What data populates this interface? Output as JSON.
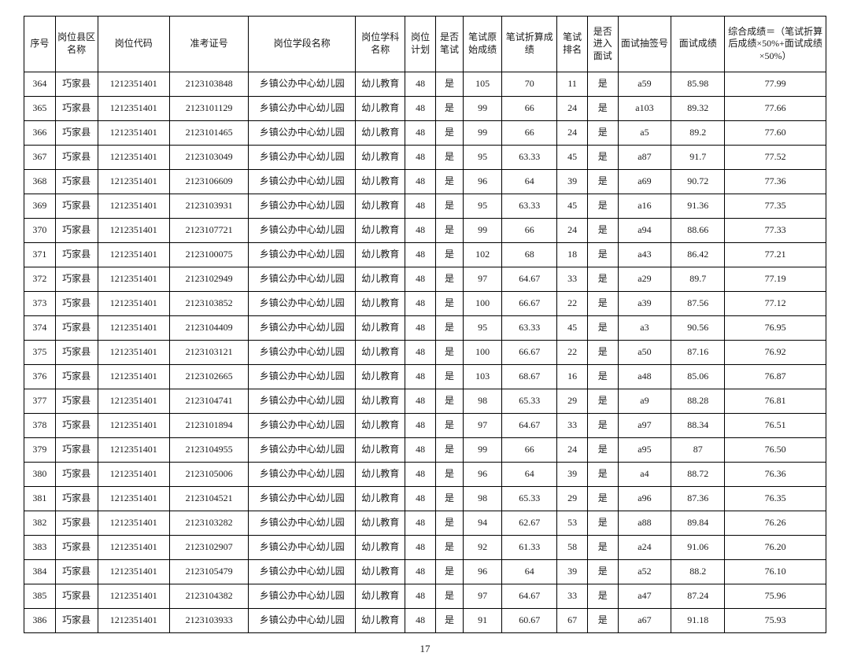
{
  "page_number": "17",
  "colgroup": [
    34,
    46,
    78,
    86,
    116,
    54,
    33,
    30,
    42,
    60,
    33,
    33,
    58,
    58,
    110
  ],
  "headers": [
    "序号",
    "岗位县区名称",
    "岗位代码",
    "准考证号",
    "岗位学段名称",
    "岗位学科名称",
    "岗位计划",
    "是否笔试",
    "笔试原始成绩",
    "笔试折算成绩",
    "笔试排名",
    "是否进入面试",
    "面试抽签号",
    "面试成绩",
    "综合成绩＝（笔试折算后成绩×50%+面试成绩×50%）"
  ],
  "rows": [
    [
      "364",
      "巧家县",
      "1212351401",
      "2123103848",
      "乡镇公办中心幼儿园",
      "幼儿教育",
      "48",
      "是",
      "105",
      "70",
      "11",
      "是",
      "a59",
      "85.98",
      "77.99"
    ],
    [
      "365",
      "巧家县",
      "1212351401",
      "2123101129",
      "乡镇公办中心幼儿园",
      "幼儿教育",
      "48",
      "是",
      "99",
      "66",
      "24",
      "是",
      "a103",
      "89.32",
      "77.66"
    ],
    [
      "366",
      "巧家县",
      "1212351401",
      "2123101465",
      "乡镇公办中心幼儿园",
      "幼儿教育",
      "48",
      "是",
      "99",
      "66",
      "24",
      "是",
      "a5",
      "89.2",
      "77.60"
    ],
    [
      "367",
      "巧家县",
      "1212351401",
      "2123103049",
      "乡镇公办中心幼儿园",
      "幼儿教育",
      "48",
      "是",
      "95",
      "63.33",
      "45",
      "是",
      "a87",
      "91.7",
      "77.52"
    ],
    [
      "368",
      "巧家县",
      "1212351401",
      "2123106609",
      "乡镇公办中心幼儿园",
      "幼儿教育",
      "48",
      "是",
      "96",
      "64",
      "39",
      "是",
      "a69",
      "90.72",
      "77.36"
    ],
    [
      "369",
      "巧家县",
      "1212351401",
      "2123103931",
      "乡镇公办中心幼儿园",
      "幼儿教育",
      "48",
      "是",
      "95",
      "63.33",
      "45",
      "是",
      "a16",
      "91.36",
      "77.35"
    ],
    [
      "370",
      "巧家县",
      "1212351401",
      "2123107721",
      "乡镇公办中心幼儿园",
      "幼儿教育",
      "48",
      "是",
      "99",
      "66",
      "24",
      "是",
      "a94",
      "88.66",
      "77.33"
    ],
    [
      "371",
      "巧家县",
      "1212351401",
      "2123100075",
      "乡镇公办中心幼儿园",
      "幼儿教育",
      "48",
      "是",
      "102",
      "68",
      "18",
      "是",
      "a43",
      "86.42",
      "77.21"
    ],
    [
      "372",
      "巧家县",
      "1212351401",
      "2123102949",
      "乡镇公办中心幼儿园",
      "幼儿教育",
      "48",
      "是",
      "97",
      "64.67",
      "33",
      "是",
      "a29",
      "89.7",
      "77.19"
    ],
    [
      "373",
      "巧家县",
      "1212351401",
      "2123103852",
      "乡镇公办中心幼儿园",
      "幼儿教育",
      "48",
      "是",
      "100",
      "66.67",
      "22",
      "是",
      "a39",
      "87.56",
      "77.12"
    ],
    [
      "374",
      "巧家县",
      "1212351401",
      "2123104409",
      "乡镇公办中心幼儿园",
      "幼儿教育",
      "48",
      "是",
      "95",
      "63.33",
      "45",
      "是",
      "a3",
      "90.56",
      "76.95"
    ],
    [
      "375",
      "巧家县",
      "1212351401",
      "2123103121",
      "乡镇公办中心幼儿园",
      "幼儿教育",
      "48",
      "是",
      "100",
      "66.67",
      "22",
      "是",
      "a50",
      "87.16",
      "76.92"
    ],
    [
      "376",
      "巧家县",
      "1212351401",
      "2123102665",
      "乡镇公办中心幼儿园",
      "幼儿教育",
      "48",
      "是",
      "103",
      "68.67",
      "16",
      "是",
      "a48",
      "85.06",
      "76.87"
    ],
    [
      "377",
      "巧家县",
      "1212351401",
      "2123104741",
      "乡镇公办中心幼儿园",
      "幼儿教育",
      "48",
      "是",
      "98",
      "65.33",
      "29",
      "是",
      "a9",
      "88.28",
      "76.81"
    ],
    [
      "378",
      "巧家县",
      "1212351401",
      "2123101894",
      "乡镇公办中心幼儿园",
      "幼儿教育",
      "48",
      "是",
      "97",
      "64.67",
      "33",
      "是",
      "a97",
      "88.34",
      "76.51"
    ],
    [
      "379",
      "巧家县",
      "1212351401",
      "2123104955",
      "乡镇公办中心幼儿园",
      "幼儿教育",
      "48",
      "是",
      "99",
      "66",
      "24",
      "是",
      "a95",
      "87",
      "76.50"
    ],
    [
      "380",
      "巧家县",
      "1212351401",
      "2123105006",
      "乡镇公办中心幼儿园",
      "幼儿教育",
      "48",
      "是",
      "96",
      "64",
      "39",
      "是",
      "a4",
      "88.72",
      "76.36"
    ],
    [
      "381",
      "巧家县",
      "1212351401",
      "2123104521",
      "乡镇公办中心幼儿园",
      "幼儿教育",
      "48",
      "是",
      "98",
      "65.33",
      "29",
      "是",
      "a96",
      "87.36",
      "76.35"
    ],
    [
      "382",
      "巧家县",
      "1212351401",
      "2123103282",
      "乡镇公办中心幼儿园",
      "幼儿教育",
      "48",
      "是",
      "94",
      "62.67",
      "53",
      "是",
      "a88",
      "89.84",
      "76.26"
    ],
    [
      "383",
      "巧家县",
      "1212351401",
      "2123102907",
      "乡镇公办中心幼儿园",
      "幼儿教育",
      "48",
      "是",
      "92",
      "61.33",
      "58",
      "是",
      "a24",
      "91.06",
      "76.20"
    ],
    [
      "384",
      "巧家县",
      "1212351401",
      "2123105479",
      "乡镇公办中心幼儿园",
      "幼儿教育",
      "48",
      "是",
      "96",
      "64",
      "39",
      "是",
      "a52",
      "88.2",
      "76.10"
    ],
    [
      "385",
      "巧家县",
      "1212351401",
      "2123104382",
      "乡镇公办中心幼儿园",
      "幼儿教育",
      "48",
      "是",
      "97",
      "64.67",
      "33",
      "是",
      "a47",
      "87.24",
      "75.96"
    ],
    [
      "386",
      "巧家县",
      "1212351401",
      "2123103933",
      "乡镇公办中心幼儿园",
      "幼儿教育",
      "48",
      "是",
      "91",
      "60.67",
      "67",
      "是",
      "a67",
      "91.18",
      "75.93"
    ]
  ]
}
